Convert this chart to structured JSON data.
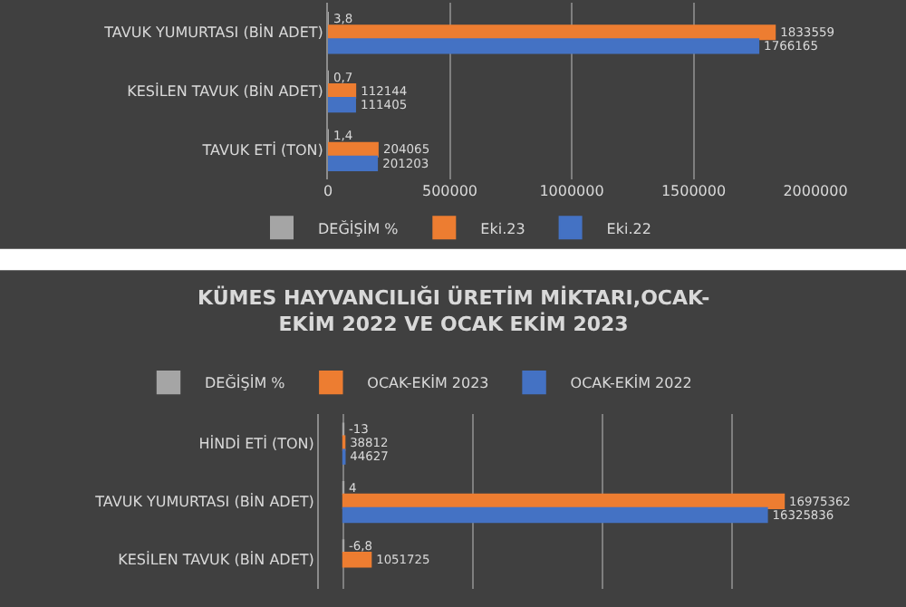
{
  "chart_data": [
    {
      "type": "bar",
      "orientation": "horizontal",
      "categories": [
        "TAVUK YUMURTASI (BİN ADET)",
        "KESİLEN TAVUK (BİN ADET)",
        "TAVUK ETİ (TON)"
      ],
      "series": [
        {
          "name": "DEĞİŞİM %",
          "color": "#a5a5a5",
          "values": [
            3.8,
            0.7,
            1.4
          ],
          "value_labels": [
            "3,8",
            "0,7",
            "1,4"
          ]
        },
        {
          "name": "Eki.23",
          "color": "#ed7d31",
          "values": [
            1833559,
            112144,
            204065
          ],
          "value_labels": [
            "1833559",
            "112144",
            "204065"
          ]
        },
        {
          "name": "Eki.22",
          "color": "#4472c4",
          "values": [
            1766165,
            111405,
            201203
          ],
          "value_labels": [
            "1766165",
            "111405",
            "201203"
          ]
        }
      ],
      "xlim": [
        0,
        2000000
      ],
      "xticks": [
        0,
        500000,
        1000000,
        1500000,
        2000000
      ],
      "grid": "x",
      "legend": "bottom"
    },
    {
      "type": "bar",
      "orientation": "horizontal",
      "title": "KÜMES HAYVANCILIĞI ÜRETİM MİKTARI,OCAK-EKİM 2022 VE OCAK EKİM 2023",
      "categories": [
        "HİNDİ ETİ (TON)",
        "TAVUK YUMURTASI (BİN ADET)",
        "KESİLEN TAVUK (BİN ADET)"
      ],
      "series": [
        {
          "name": "DEĞİŞİM %",
          "color": "#a5a5a5",
          "values": [
            -13,
            4,
            -6.8
          ],
          "value_labels": [
            "-13",
            "4",
            "-6,8"
          ]
        },
        {
          "name": "OCAK-EKİM 2023",
          "color": "#ed7d31",
          "values": [
            38812,
            16975362,
            1051725
          ],
          "value_labels": [
            "38812",
            "16975362",
            "1051725"
          ]
        },
        {
          "name": "OCAK-EKİM 2022",
          "color": "#4472c4",
          "values": [
            44627,
            16325836,
            null
          ],
          "value_labels": [
            "44627",
            "16325836",
            null
          ]
        }
      ],
      "tick_labels": "y",
      "grid": "x",
      "legend": "top"
    }
  ]
}
